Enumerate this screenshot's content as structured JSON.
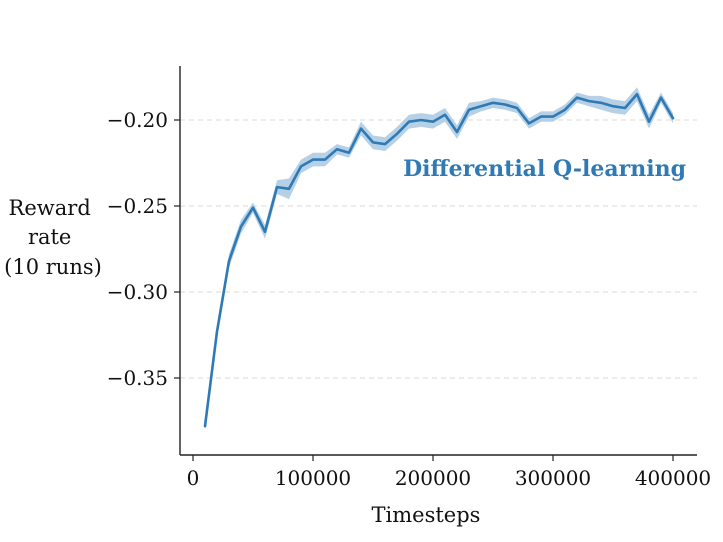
{
  "chart_data": {
    "type": "line",
    "xlabel": "Timesteps",
    "ylabel_lines": [
      "Reward",
      "rate",
      "(10 runs)"
    ],
    "xlim": [
      -5000,
      410000
    ],
    "ylim": [
      -0.395,
      -0.17
    ],
    "xticks": [
      0,
      100000,
      200000,
      300000,
      400000
    ],
    "xtick_labels": [
      "0",
      "100000",
      "200000",
      "300000",
      "400000"
    ],
    "yticks": [
      -0.35,
      -0.3,
      -0.25,
      -0.2
    ],
    "ytick_labels": [
      "−0.35",
      "−0.30",
      "−0.25",
      "−0.20"
    ],
    "grid": "horizontal-dashed",
    "series": [
      {
        "name": "Differential Q-learning",
        "color": "#2f7ab5",
        "band_color": "#a9c8e2",
        "x": [
          10000,
          20000,
          30000,
          40000,
          50000,
          60000,
          70000,
          80000,
          90000,
          100000,
          110000,
          120000,
          130000,
          140000,
          150000,
          160000,
          170000,
          180000,
          190000,
          200000,
          210000,
          220000,
          230000,
          240000,
          250000,
          260000,
          270000,
          280000,
          290000,
          300000,
          310000,
          320000,
          330000,
          340000,
          350000,
          360000,
          370000,
          380000,
          390000,
          400000
        ],
        "y": [
          -0.378,
          -0.323,
          -0.282,
          -0.262,
          -0.251,
          -0.265,
          -0.239,
          -0.24,
          -0.227,
          -0.223,
          -0.223,
          -0.217,
          -0.219,
          -0.205,
          -0.213,
          -0.214,
          -0.208,
          -0.201,
          -0.2,
          -0.201,
          -0.197,
          -0.207,
          -0.194,
          -0.192,
          -0.19,
          -0.191,
          -0.193,
          -0.202,
          -0.198,
          -0.198,
          -0.194,
          -0.187,
          -0.189,
          -0.19,
          -0.192,
          -0.193,
          -0.185,
          -0.201,
          -0.187,
          -0.199
        ],
        "band": [
          0.002,
          0.004,
          0.004,
          0.004,
          0.003,
          0.004,
          0.004,
          0.006,
          0.004,
          0.004,
          0.004,
          0.003,
          0.003,
          0.004,
          0.004,
          0.004,
          0.004,
          0.004,
          0.004,
          0.004,
          0.004,
          0.004,
          0.004,
          0.003,
          0.003,
          0.003,
          0.003,
          0.003,
          0.003,
          0.003,
          0.003,
          0.003,
          0.003,
          0.004,
          0.004,
          0.004,
          0.004,
          0.004,
          0.003,
          0.003
        ]
      }
    ]
  }
}
